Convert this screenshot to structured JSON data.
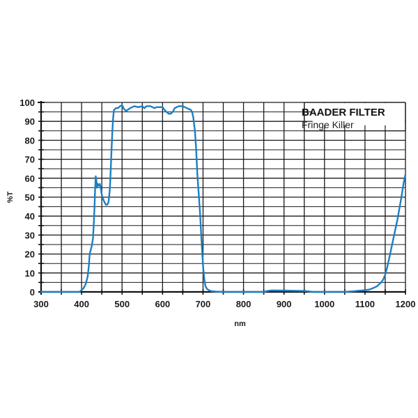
{
  "chart_data": {
    "type": "line",
    "title": "BAADER FILTER",
    "subtitle": "Fringe Killer",
    "xlabel": "nm",
    "ylabel": "%T",
    "xlim": [
      300,
      1200
    ],
    "ylim": [
      0,
      100
    ],
    "grid": true,
    "legend_position": "top-right",
    "x_ticks": [
      300,
      400,
      500,
      600,
      700,
      800,
      900,
      1000,
      1100,
      1200
    ],
    "x_minor_step": 50,
    "y_ticks": [
      0,
      10,
      20,
      30,
      40,
      50,
      60,
      70,
      80,
      90,
      100
    ],
    "y_minor_step": 5,
    "series": [
      {
        "name": "Fringe Killer",
        "color": "#1b7fc4",
        "x": [
          300,
          350,
          395,
          400,
          405,
          410,
          415,
          418,
          420,
          425,
          428,
          430,
          432,
          433,
          435,
          437,
          438,
          440,
          442,
          445,
          448,
          450,
          455,
          460,
          463,
          466,
          468,
          470,
          472,
          474,
          476,
          478,
          480,
          485,
          490,
          495,
          500,
          505,
          510,
          520,
          530,
          540,
          550,
          555,
          560,
          570,
          580,
          585,
          590,
          600,
          605,
          610,
          615,
          620,
          625,
          630,
          640,
          650,
          655,
          660,
          665,
          670,
          673,
          676,
          680,
          683,
          686,
          690,
          693,
          696,
          700,
          703,
          706,
          710,
          715,
          720,
          730,
          750,
          800,
          850,
          860,
          870,
          900,
          930,
          950,
          960,
          970,
          1000,
          1050,
          1070,
          1080,
          1090,
          1100,
          1110,
          1120,
          1130,
          1140,
          1145,
          1150,
          1155,
          1160,
          1165,
          1170,
          1175,
          1180,
          1185,
          1190,
          1193,
          1196,
          1198,
          1200
        ],
        "values": [
          0,
          0,
          0,
          1,
          2,
          4,
          8,
          14,
          20,
          24,
          28,
          35,
          45,
          52,
          61,
          58,
          55,
          57,
          56,
          57,
          54,
          51,
          48,
          46,
          46,
          47,
          50,
          55,
          65,
          75,
          85,
          92,
          96,
          97,
          97,
          98,
          98.5,
          96.5,
          95.5,
          97,
          98,
          97.5,
          98,
          97,
          98,
          98,
          97,
          97.5,
          97.5,
          97.5,
          96,
          95,
          94,
          94,
          95,
          97,
          98,
          98,
          97.5,
          97,
          96.5,
          96,
          95,
          92,
          85,
          75,
          62,
          50,
          40,
          28,
          14,
          7,
          3,
          1.5,
          0.8,
          0.4,
          0.2,
          0,
          0,
          0,
          0.5,
          0.8,
          0.7,
          0.6,
          0.5,
          0.3,
          0,
          0,
          0,
          0.3,
          0.5,
          0.7,
          0.9,
          1.2,
          2,
          3,
          5,
          6.5,
          9,
          13,
          18,
          23,
          28,
          33,
          38,
          44,
          50,
          54,
          58,
          60,
          62
        ]
      }
    ]
  },
  "legend": {
    "title": "BAADER FILTER",
    "subtitle": "Fringe Killer"
  },
  "axes": {
    "xlabel": "nm",
    "ylabel": "%T"
  },
  "colors": {
    "line": "#1b7fc4",
    "grid": "#1a1a1a",
    "background": "#ffffff"
  }
}
